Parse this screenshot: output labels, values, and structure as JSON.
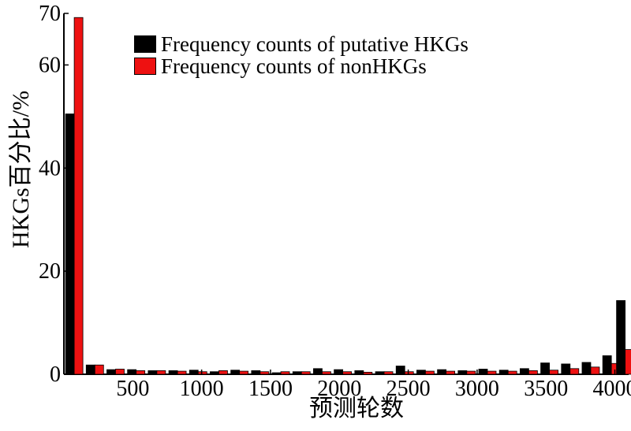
{
  "chart_data": {
    "type": "bar",
    "xlabel": "预测轮数",
    "ylabel": "HKGs百分比/%",
    "ylim": [
      0,
      70
    ],
    "xlim": [
      0,
      4100
    ],
    "bin_width": 150,
    "x": [
      75,
      225,
      375,
      525,
      675,
      825,
      975,
      1125,
      1275,
      1425,
      1575,
      1725,
      1875,
      2025,
      2175,
      2325,
      2475,
      2625,
      2775,
      2925,
      3075,
      3225,
      3375,
      3525,
      3675,
      3825,
      3975,
      4075
    ],
    "y_ticks": [
      0,
      20,
      40,
      60,
      70
    ],
    "x_ticks": [
      500,
      1000,
      1500,
      2000,
      2500,
      3000,
      3500,
      4000
    ],
    "grid": false,
    "legend_position": "top-center",
    "series": [
      {
        "name": "Frequency counts of putative HKGs",
        "color": "#000000",
        "values": [
          50.5,
          1.8,
          0.9,
          0.9,
          0.7,
          0.7,
          0.8,
          0.5,
          0.8,
          0.7,
          0.3,
          0.5,
          1.1,
          0.9,
          0.7,
          0.5,
          1.6,
          0.8,
          0.9,
          0.7,
          1.0,
          0.8,
          1.1,
          2.2,
          2.0,
          2.3,
          3.6,
          14.3
        ]
      },
      {
        "name": "Frequency counts of nonHKGs",
        "color": "#ee1111",
        "values": [
          69.2,
          1.8,
          1.0,
          0.7,
          0.7,
          0.6,
          0.5,
          0.7,
          0.6,
          0.5,
          0.5,
          0.5,
          0.5,
          0.5,
          0.4,
          0.5,
          0.5,
          0.6,
          0.6,
          0.6,
          0.6,
          0.6,
          0.7,
          0.8,
          1.1,
          1.4,
          2.1,
          4.8
        ]
      }
    ]
  }
}
